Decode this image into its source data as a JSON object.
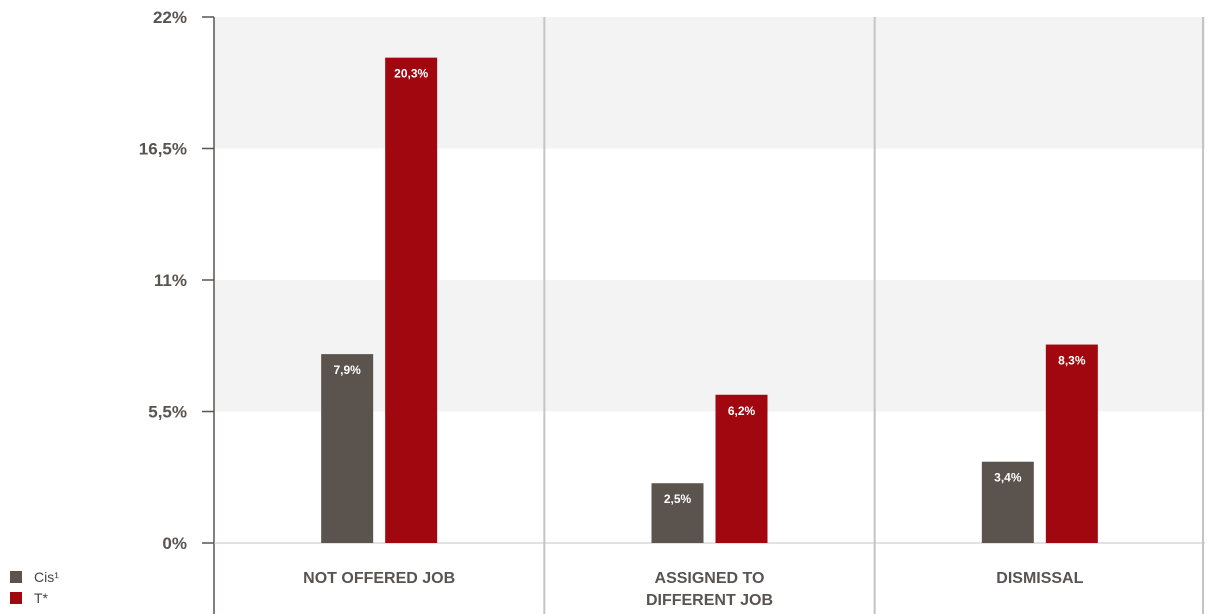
{
  "chart_data": {
    "type": "bar",
    "categories": [
      "NOT OFFERED JOB",
      "ASSIGNED TO DIFFERENT JOB",
      "DISMISSAL"
    ],
    "category_lines": [
      [
        "NOT OFFERED JOB"
      ],
      [
        "ASSIGNED TO",
        "DIFFERENT JOB"
      ],
      [
        "DISMISSAL"
      ]
    ],
    "series": [
      {
        "name": "Cis¹",
        "color": "#5b534d",
        "values": [
          7.9,
          2.5,
          3.4
        ],
        "labels": [
          "7,9%",
          "2,5%",
          "3,4%"
        ]
      },
      {
        "name": "T*",
        "color": "#a0070e",
        "values": [
          20.3,
          6.2,
          8.3
        ],
        "labels": [
          "20,3%",
          "6,2%",
          "8,3%"
        ]
      }
    ],
    "yticks": [
      0,
      5.5,
      11,
      16.5,
      22
    ],
    "ytick_labels": [
      "0%",
      "5,5%",
      "11%",
      "16,5%",
      "22%"
    ],
    "ylim": [
      0,
      22
    ],
    "bands": [
      [
        5.5,
        11
      ],
      [
        16.5,
        22
      ]
    ],
    "legend_position": "bottom-left"
  },
  "legend": [
    {
      "label": "Cis¹",
      "color": "#5b534d"
    },
    {
      "label": "T*",
      "color": "#a0070e"
    }
  ]
}
